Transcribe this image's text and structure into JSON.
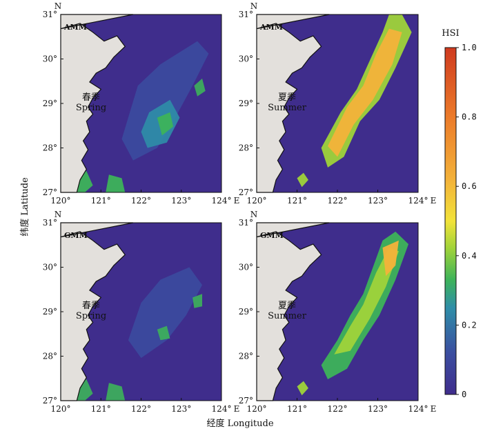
{
  "figure": {
    "x_axis_title": "经度 Longitude",
    "y_axis_title": "纬度 Latitude",
    "north_label": "N",
    "east_label": "E"
  },
  "lon_ticks": [
    "120°",
    "121°",
    "122°",
    "123°",
    "124°"
  ],
  "lat_ticks": [
    "27°",
    "28°",
    "29°",
    "30°",
    "31°"
  ],
  "panels": [
    {
      "id": "amm-spring",
      "model": "AMM",
      "season_cn": "春季",
      "season_en": "Spring"
    },
    {
      "id": "amm-summer",
      "model": "AMM",
      "season_cn": "夏季",
      "season_en": "Summer"
    },
    {
      "id": "gmm-spring",
      "model": "GMM",
      "season_cn": "春季",
      "season_en": "Spring"
    },
    {
      "id": "gmm-summer",
      "model": "GMM",
      "season_cn": "夏季",
      "season_en": "Summer"
    }
  ],
  "colorbar": {
    "title": "HSI",
    "ticks": [
      "0",
      "0.2",
      "0.4",
      "0.6",
      "0.8",
      "1.0"
    ],
    "colors": [
      "#3f2d8c",
      "#3b5aa8",
      "#2f8ea8",
      "#3db35a",
      "#9fd33a",
      "#f2e33a",
      "#f3b23a",
      "#ec7b2a",
      "#cf3a1f"
    ]
  },
  "colors": {
    "sea": "#3f2d8c",
    "land": "#e3e0dc",
    "coast": "#111111"
  }
}
